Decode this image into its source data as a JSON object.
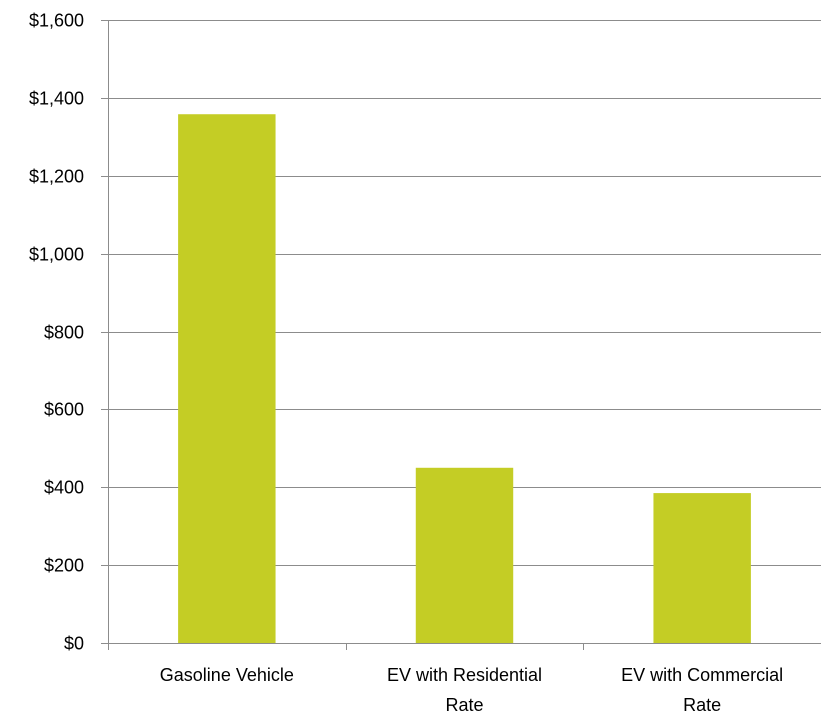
{
  "chart_data": {
    "type": "bar",
    "title": "",
    "xlabel": "",
    "ylabel": "",
    "categories": [
      [
        "Gasoline Vehicle"
      ],
      [
        "EV with Residential",
        "Rate"
      ],
      [
        "EV with Commercial",
        "Rate"
      ]
    ],
    "values": [
      1358,
      450,
      385
    ],
    "ylim": [
      0,
      1600
    ],
    "yticks": [
      0,
      200,
      400,
      600,
      800,
      1000,
      1200,
      1400,
      1600
    ],
    "ytick_labels": [
      "$0",
      "$200",
      "$400",
      "$600",
      "$800",
      "$1,000",
      "$1,200",
      "$1,400",
      "$1,600"
    ],
    "grid": true,
    "legend": "none",
    "bar_color": "#c4cd25"
  }
}
